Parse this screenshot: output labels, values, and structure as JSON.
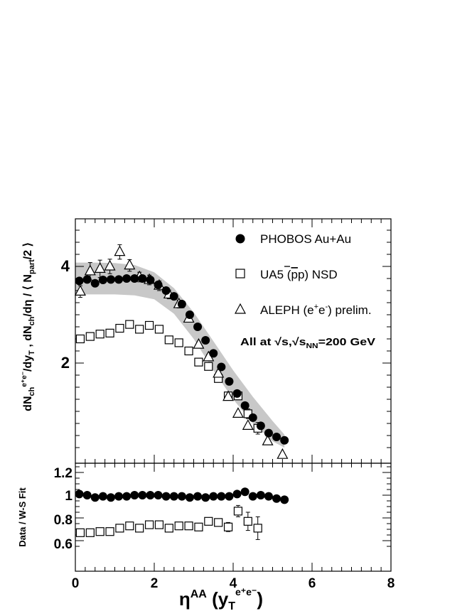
{
  "chart_data": [
    {
      "type": "scatter",
      "panel": "main",
      "ylabel_parts": {
        "a": "dN",
        "a_sub": "ch",
        "a_sup": "e⁺e⁻",
        "b": "/dy",
        "b_sub": "T",
        "c": " ,  dN",
        "c_sub": "ch",
        "d": "/dη / ⟨ N",
        "d_sub": "part",
        "e": "/2 ⟩"
      },
      "xlim": [
        0,
        8
      ],
      "ylim": [
        0,
        5
      ],
      "yticks": [
        "2",
        "4"
      ],
      "legend": {
        "placement": "top-right",
        "entries": [
          {
            "marker": "filled-circle",
            "text": "PHOBOS Au+Au"
          },
          {
            "marker": "open-square",
            "text_pre": "UA5 (",
            "text_bar": "p",
            "text_post": "p) NSD"
          },
          {
            "marker": "open-triangle",
            "text_pre": "ALEPH (e",
            "sup1": "+",
            "text_mid": "e",
            "sup2": "-",
            "text_post": ") prelim."
          }
        ],
        "annotation": {
          "pre": "All at ",
          "mid": ",",
          "sub": "NN",
          "post": "=200 GeV"
        }
      },
      "band": {
        "x": [
          0.0,
          0.5,
          1.0,
          1.5,
          2.0,
          2.5,
          3.0,
          3.5,
          4.0,
          4.5,
          5.0,
          5.3
        ],
        "upper": [
          4.08,
          4.08,
          4.07,
          4.03,
          3.88,
          3.55,
          3.05,
          2.45,
          1.85,
          1.3,
          0.8,
          0.52
        ],
        "lower": [
          3.42,
          3.42,
          3.42,
          3.4,
          3.32,
          3.02,
          2.5,
          1.85,
          1.25,
          0.75,
          0.38,
          0.25
        ]
      },
      "series": [
        {
          "name": "PHOBOS Au+Au",
          "marker": "filled-circle",
          "x": [
            0.1,
            0.3,
            0.5,
            0.7,
            0.9,
            1.1,
            1.3,
            1.5,
            1.7,
            1.9,
            2.1,
            2.3,
            2.5,
            2.7,
            2.9,
            3.1,
            3.3,
            3.5,
            3.7,
            3.9,
            4.1,
            4.3,
            4.5,
            4.7,
            4.9,
            5.1,
            5.3
          ],
          "y": [
            3.7,
            3.73,
            3.65,
            3.72,
            3.73,
            3.73,
            3.75,
            3.75,
            3.75,
            3.72,
            3.62,
            3.5,
            3.38,
            3.22,
            3.0,
            2.75,
            2.47,
            2.2,
            1.92,
            1.62,
            1.37,
            1.12,
            0.87,
            0.7,
            0.55,
            0.47,
            0.4
          ]
        },
        {
          "name": "UA5 (pp) NSD",
          "marker": "open-square",
          "x": [
            0.125,
            0.375,
            0.625,
            0.875,
            1.125,
            1.375,
            1.625,
            1.875,
            2.125,
            2.375,
            2.625,
            2.875,
            3.125,
            3.375,
            3.625,
            3.875,
            4.125,
            4.375,
            4.625
          ],
          "y": [
            2.5,
            2.55,
            2.6,
            2.62,
            2.72,
            2.8,
            2.7,
            2.78,
            2.7,
            2.48,
            2.42,
            2.25,
            2.02,
            1.93,
            1.68,
            1.32,
            1.32,
            0.95,
            0.65
          ],
          "err": [
            0.06,
            0.06,
            0.06,
            0.06,
            0.07,
            0.07,
            0.07,
            0.07,
            0.07,
            0.07,
            0.07,
            0.07,
            0.07,
            0.07,
            0.07,
            0.07,
            0.08,
            0.1,
            0.12
          ]
        },
        {
          "name": "ALEPH (e+e-) prelim.",
          "marker": "open-triangle",
          "x": [
            0.125,
            0.375,
            0.625,
            0.875,
            1.125,
            1.375,
            1.625,
            1.875,
            2.125,
            2.375,
            2.625,
            2.875,
            3.125,
            3.375,
            3.625,
            3.875,
            4.125,
            4.375,
            4.875,
            5.25
          ],
          "y": [
            3.48,
            3.9,
            3.95,
            4.0,
            4.3,
            4.02,
            3.78,
            3.72,
            3.6,
            3.42,
            3.22,
            2.92,
            2.38,
            2.12,
            1.78,
            1.3,
            0.95,
            0.7,
            0.38,
            0.1
          ],
          "err": [
            0.12,
            0.18,
            0.18,
            0.15,
            0.15,
            0.12,
            0.1,
            0.1,
            0.1,
            0.09,
            0.08,
            0.07,
            0.06,
            0.06,
            0.05,
            0.05,
            0.04,
            0.04,
            0.03,
            0.02
          ]
        }
      ]
    },
    {
      "type": "scatter",
      "panel": "ratio",
      "ylabel": "Data / W-S Fit",
      "xlim": [
        0,
        8
      ],
      "ylim": [
        0.5,
        1.35
      ],
      "xticks": [
        "0",
        "2",
        "4",
        "6",
        "8"
      ],
      "yticks": [
        "0.6",
        "0.8",
        "1",
        "1.2"
      ],
      "xlabel_parts": {
        "a": "η",
        "a_sup": "AA",
        "b": " (y",
        "b_sub": "T",
        "b_sup": "e⁺e⁻",
        "c": ")"
      },
      "series": [
        {
          "name": "PHOBOS Au+Au",
          "marker": "filled-circle",
          "x": [
            0.1,
            0.3,
            0.5,
            0.7,
            0.9,
            1.1,
            1.3,
            1.5,
            1.7,
            1.9,
            2.1,
            2.3,
            2.5,
            2.7,
            2.9,
            3.1,
            3.3,
            3.5,
            3.7,
            3.9,
            4.1,
            4.3,
            4.5,
            4.7,
            4.9,
            5.1,
            5.3
          ],
          "y": [
            1.01,
            1.0,
            0.98,
            0.99,
            0.98,
            0.99,
            0.99,
            1.0,
            1.0,
            1.0,
            1.0,
            0.99,
            0.99,
            0.99,
            0.98,
            0.99,
            0.98,
            0.99,
            0.99,
            0.99,
            1.01,
            1.03,
            0.99,
            1.0,
            0.99,
            0.97,
            0.96
          ]
        },
        {
          "name": "UA5 (pp) NSD",
          "marker": "open-square",
          "x": [
            0.125,
            0.375,
            0.625,
            0.875,
            1.125,
            1.375,
            1.625,
            1.875,
            2.125,
            2.375,
            2.625,
            2.875,
            3.125,
            3.375,
            3.625,
            3.875,
            4.125,
            4.375,
            4.625
          ],
          "y": [
            0.67,
            0.67,
            0.68,
            0.68,
            0.71,
            0.73,
            0.71,
            0.74,
            0.74,
            0.71,
            0.73,
            0.73,
            0.72,
            0.77,
            0.76,
            0.72,
            0.86,
            0.77,
            0.71
          ],
          "err": [
            0.02,
            0.02,
            0.02,
            0.02,
            0.02,
            0.02,
            0.02,
            0.02,
            0.02,
            0.02,
            0.02,
            0.02,
            0.02,
            0.03,
            0.03,
            0.04,
            0.05,
            0.08,
            0.1
          ]
        }
      ]
    }
  ]
}
